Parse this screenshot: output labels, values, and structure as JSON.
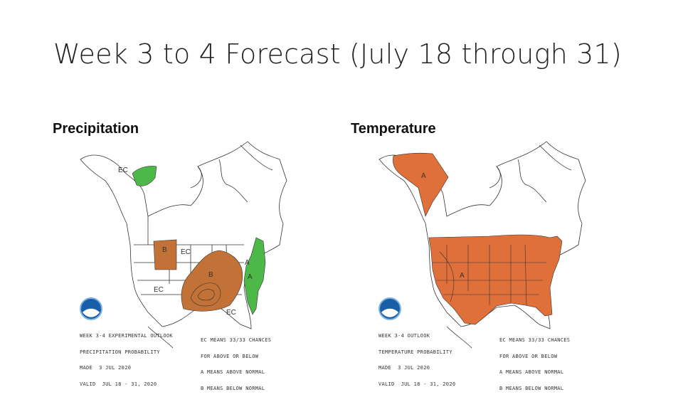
{
  "slide": {
    "title": "Week 3 to 4 Forecast (July 18 through 31)"
  },
  "panels": [
    {
      "label": "Precipitation",
      "legend_left": [
        "WEEK 3-4 EXPERIMENTAL OUTLOOK",
        "PRECIPITATION PROBABILITY",
        "MADE  3 JUL 2020",
        "VALID  JUL 18 - 31, 2020"
      ],
      "legend_right": [
        "EC MEANS 33/33 CHANCES",
        "FOR ABOVE OR BELOW",
        "A MEANS ABOVE NORMAL",
        "B MEANS BELOW NORMAL"
      ],
      "region_labels": [
        "EC",
        "B",
        "EC",
        "B",
        "A",
        "EC",
        "EC",
        "A"
      ],
      "colors": {
        "above": "#4cb848",
        "below": "#c27236"
      }
    },
    {
      "label": "Temperature",
      "legend_left": [
        "WEEK 3-4 OUTLOOK",
        "TEMPERATURE PROBABILITY",
        "MADE  3 JUL 2020",
        "VALID  JUL 18 - 31, 2020"
      ],
      "legend_right": [
        "EC MEANS 33/33 CHANCES",
        "FOR ABOVE OR BELOW",
        "A MEANS ABOVE NORMAL",
        "B MEANS BELOW NORMAL"
      ],
      "region_labels": [
        "A",
        "A"
      ],
      "colors": {
        "above": "#e0703a"
      }
    }
  ],
  "logo": {
    "text": "NOAA",
    "color": "#1a5ea8"
  }
}
